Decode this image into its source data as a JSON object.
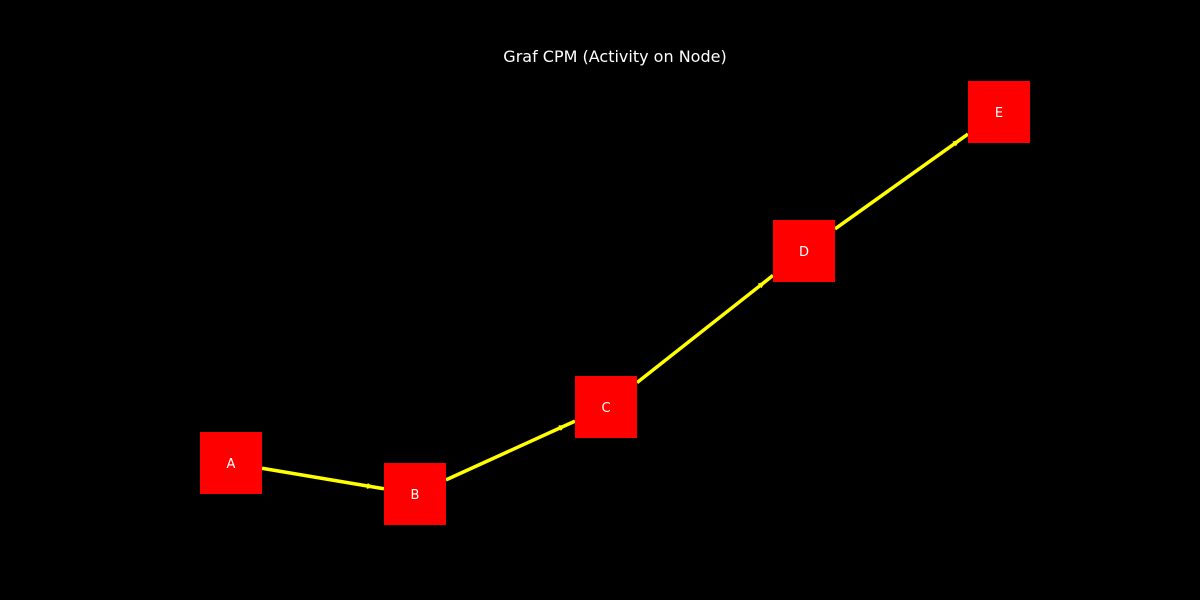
{
  "diagram": {
    "title": "Graf CPM (Activity on Node)",
    "nodes": [
      {
        "id": "A",
        "label": "A"
      },
      {
        "id": "B",
        "label": "B"
      },
      {
        "id": "C",
        "label": "C"
      },
      {
        "id": "D",
        "label": "D"
      },
      {
        "id": "E",
        "label": "E"
      }
    ],
    "edges": [
      {
        "from": "A",
        "to": "B"
      },
      {
        "from": "B",
        "to": "C"
      },
      {
        "from": "C",
        "to": "D"
      },
      {
        "from": "D",
        "to": "E"
      }
    ],
    "colors": {
      "background": "#000000",
      "node_fill": "#ff0000",
      "edge": "#ffff00",
      "text": "#ffffff"
    }
  }
}
